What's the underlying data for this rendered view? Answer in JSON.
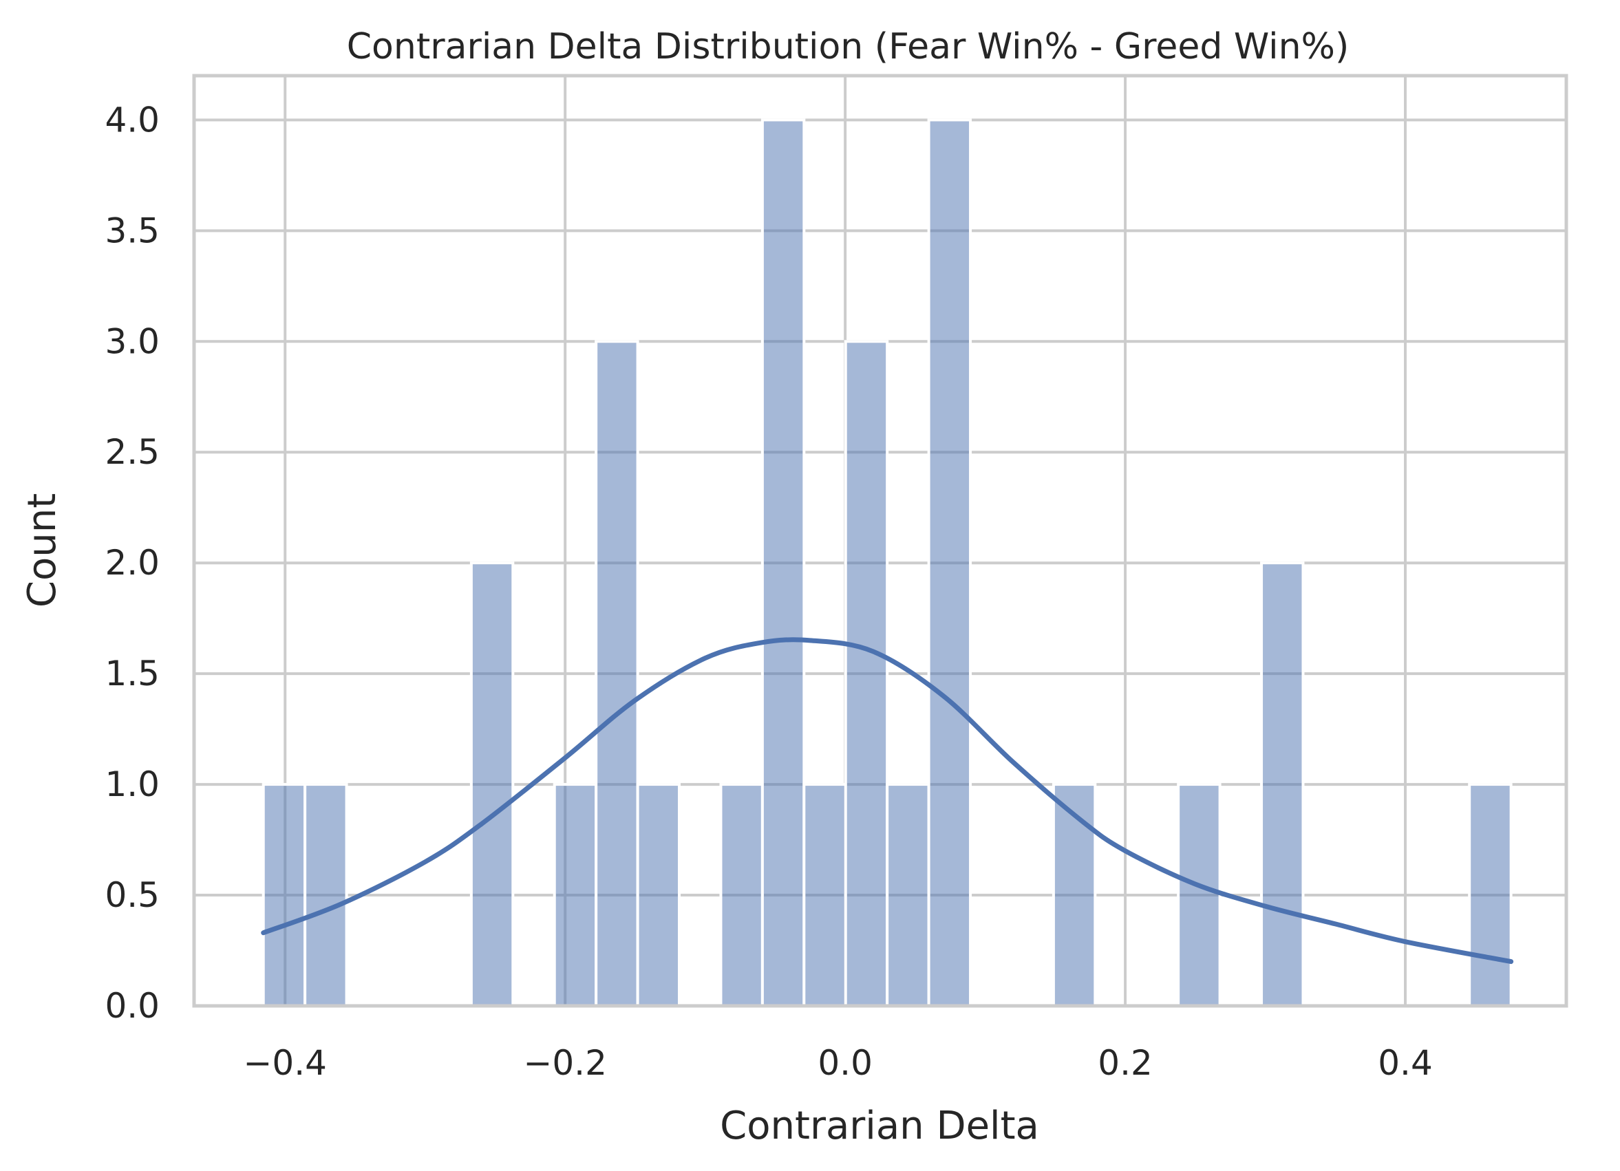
{
  "chart_data": {
    "type": "bar",
    "title": "Contrarian Delta Distribution (Fear Win% - Greed Win%)",
    "xlabel": "Contrarian Delta",
    "ylabel": "Count",
    "xlim": [
      -0.465,
      0.515
    ],
    "ylim": [
      0,
      4.2
    ],
    "grid": true,
    "bin_width": 0.0297,
    "bins": [
      {
        "x0": -0.4155,
        "count": 1
      },
      {
        "x0": -0.3858,
        "count": 1
      },
      {
        "x0": -0.267,
        "count": 2
      },
      {
        "x0": -0.2076,
        "count": 1
      },
      {
        "x0": -0.1779,
        "count": 3
      },
      {
        "x0": -0.1482,
        "count": 1
      },
      {
        "x0": -0.0888,
        "count": 1
      },
      {
        "x0": -0.0591,
        "count": 4
      },
      {
        "x0": -0.0294,
        "count": 1
      },
      {
        "x0": 0.0003,
        "count": 3
      },
      {
        "x0": 0.03,
        "count": 1
      },
      {
        "x0": 0.0597,
        "count": 4
      },
      {
        "x0": 0.1488,
        "count": 1
      },
      {
        "x0": 0.2379,
        "count": 1
      },
      {
        "x0": 0.2973,
        "count": 2
      },
      {
        "x0": 0.4458,
        "count": 1
      }
    ],
    "kde": {
      "x": [
        -0.4155,
        -0.36,
        -0.3,
        -0.26,
        -0.2,
        -0.15,
        -0.1,
        -0.06,
        -0.025,
        0.02,
        0.07,
        0.12,
        0.17,
        0.2,
        0.25,
        0.3,
        0.35,
        0.4,
        0.4755
      ],
      "y": [
        0.33,
        0.46,
        0.65,
        0.82,
        1.12,
        1.38,
        1.57,
        1.64,
        1.65,
        1.6,
        1.4,
        1.1,
        0.83,
        0.7,
        0.55,
        0.45,
        0.37,
        0.29,
        0.2
      ]
    },
    "xticks": [
      -0.4,
      -0.2,
      0.0,
      0.2,
      0.4
    ],
    "xtick_labels": [
      "−0.4",
      "−0.2",
      "0.0",
      "0.2",
      "0.4"
    ],
    "yticks": [
      0.0,
      0.5,
      1.0,
      1.5,
      2.0,
      2.5,
      3.0,
      3.5,
      4.0
    ],
    "ytick_labels": [
      "0.0",
      "0.5",
      "1.0",
      "1.5",
      "2.0",
      "2.5",
      "3.0",
      "3.5",
      "4.0"
    ],
    "colors": {
      "bar_fill": "#4c72b0",
      "bar_opacity": 0.5,
      "kde_line": "#4c72b0",
      "grid": "#cccccc",
      "spine": "#cccccc",
      "text": "#262626"
    }
  }
}
